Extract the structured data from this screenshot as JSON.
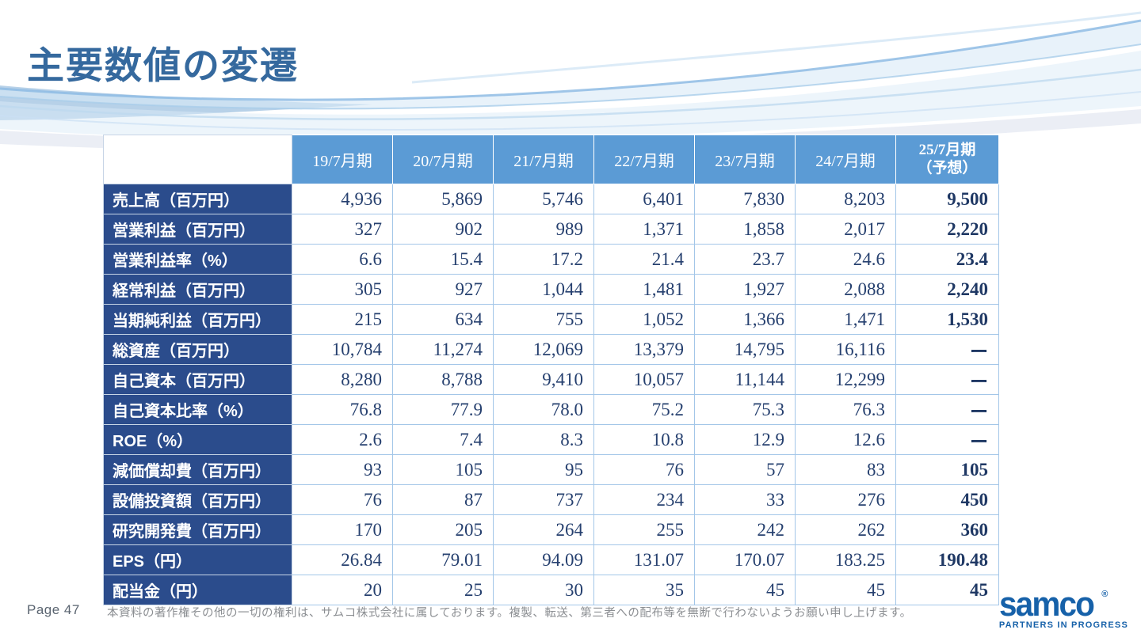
{
  "slide": {
    "title": "主要数値の変遷"
  },
  "table": {
    "corner": "",
    "col_headers": [
      "19/7月期",
      "20/7月期",
      "21/7月期",
      "22/7月期",
      "23/7月期",
      "24/7月期"
    ],
    "forecast_header": {
      "line1": "25/7月期",
      "line2": "（予想）"
    },
    "rows": [
      {
        "label": "売上高（百万円）",
        "values": [
          "4,936",
          "5,869",
          "5,746",
          "6,401",
          "7,830",
          "8,203",
          "9,500"
        ]
      },
      {
        "label": "営業利益（百万円）",
        "values": [
          "327",
          "902",
          "989",
          "1,371",
          "1,858",
          "2,017",
          "2,220"
        ]
      },
      {
        "label": "営業利益率（%）",
        "values": [
          "6.6",
          "15.4",
          "17.2",
          "21.4",
          "23.7",
          "24.6",
          "23.4"
        ]
      },
      {
        "label": "経常利益（百万円）",
        "values": [
          "305",
          "927",
          "1,044",
          "1,481",
          "1,927",
          "2,088",
          "2,240"
        ]
      },
      {
        "label": "当期純利益（百万円）",
        "values": [
          "215",
          "634",
          "755",
          "1,052",
          "1,366",
          "1,471",
          "1,530"
        ]
      },
      {
        "label": "総資産（百万円）",
        "values": [
          "10,784",
          "11,274",
          "12,069",
          "13,379",
          "14,795",
          "16,116",
          "ー"
        ]
      },
      {
        "label": "自己資本（百万円）",
        "values": [
          "8,280",
          "8,788",
          "9,410",
          "10,057",
          "11,144",
          "12,299",
          "ー"
        ]
      },
      {
        "label": "自己資本比率（%）",
        "values": [
          "76.8",
          "77.9",
          "78.0",
          "75.2",
          "75.3",
          "76.3",
          "ー"
        ]
      },
      {
        "label": "ROE（%）",
        "values": [
          "2.6",
          "7.4",
          "8.3",
          "10.8",
          "12.9",
          "12.6",
          "ー"
        ]
      },
      {
        "label": "減価償却費（百万円）",
        "values": [
          "93",
          "105",
          "95",
          "76",
          "57",
          "83",
          "105"
        ]
      },
      {
        "label": "設備投資額（百万円）",
        "values": [
          "76",
          "87",
          "737",
          "234",
          "33",
          "276",
          "450"
        ]
      },
      {
        "label": "研究開発費（百万円）",
        "values": [
          "170",
          "205",
          "264",
          "255",
          "242",
          "262",
          "360"
        ]
      },
      {
        "label": "EPS（円）",
        "values": [
          "26.84",
          "79.01",
          "94.09",
          "131.07",
          "170.07",
          "183.25",
          "190.48"
        ]
      },
      {
        "label": "配当金（円）",
        "values": [
          "20",
          "25",
          "30",
          "35",
          "45",
          "45",
          "45"
        ]
      }
    ]
  },
  "footer": {
    "page_label": "Page 47",
    "copyright": "本資料の著作権その他の一切の権利は、サムコ株式会社に属しております。複製、転送、第三者への配布等を無断で行わないようお願い申し上げます。",
    "logo": {
      "wordmark": "samco",
      "registered": "®",
      "tagline": "PARTNERS IN PROGRESS"
    }
  },
  "colors": {
    "title_blue": "#35699E",
    "header_blue": "#5B9BD5",
    "label_navy": "#2B4C8C",
    "value_navy": "#26406F",
    "forecast_navy": "#1F3864",
    "grid_blue": "#A3C6E8",
    "logo_blue": "#1661A9",
    "copyright_gray": "#8C8F93"
  }
}
